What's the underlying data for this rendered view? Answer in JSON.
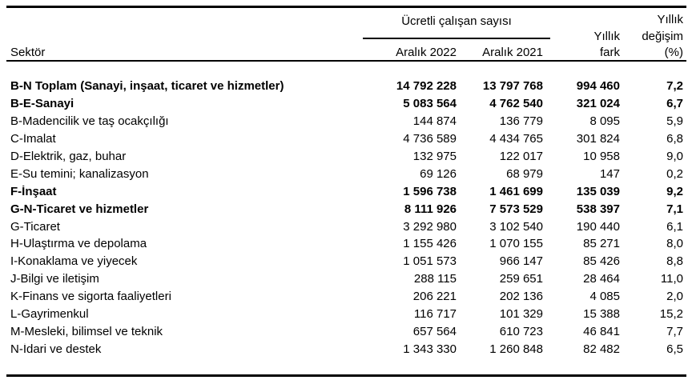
{
  "colors": {
    "background": "#ffffff",
    "text": "#000000",
    "rule": "#000000"
  },
  "table": {
    "sector_header": "Sektör",
    "group_header": "Ücretli çalışan sayısı",
    "col_2022": "Aralık 2022",
    "col_2021": "Aralık 2021",
    "col_fark": {
      "line1": "Yıllık",
      "line2": "fark"
    },
    "col_pct": {
      "line1": "Yıllık",
      "line2": "değişim",
      "line3": "(%)"
    },
    "rows": [
      {
        "sector": "B-N Toplam (Sanayi, inşaat, ticaret ve hizmetler)",
        "dec_2022": "14 792 228",
        "dec_2021": "13 797 768",
        "annual_diff": "994 460",
        "annual_change_pct": "7,2",
        "bold": true
      },
      {
        "sector": "B-E-Sanayi",
        "dec_2022": "5 083 564",
        "dec_2021": "4 762 540",
        "annual_diff": "321 024",
        "annual_change_pct": "6,7",
        "bold": true
      },
      {
        "sector": "B-Madencilik ve taş ocakçılığı",
        "dec_2022": "144 874",
        "dec_2021": "136 779",
        "annual_diff": "8 095",
        "annual_change_pct": "5,9",
        "bold": false
      },
      {
        "sector": "C-İmalat",
        "dec_2022": "4 736 589",
        "dec_2021": "4 434 765",
        "annual_diff": "301 824",
        "annual_change_pct": "6,8",
        "bold": false
      },
      {
        "sector": "D-Elektrik, gaz, buhar",
        "dec_2022": "132 975",
        "dec_2021": "122 017",
        "annual_diff": "10 958",
        "annual_change_pct": "9,0",
        "bold": false
      },
      {
        "sector": "E-Su temini; kanalizasyon",
        "dec_2022": "69 126",
        "dec_2021": "68 979",
        "annual_diff": "147",
        "annual_change_pct": "0,2",
        "bold": false
      },
      {
        "sector": "F-İnşaat",
        "dec_2022": "1 596 738",
        "dec_2021": "1 461 699",
        "annual_diff": "135 039",
        "annual_change_pct": "9,2",
        "bold": true
      },
      {
        "sector": "G-N-Ticaret ve hizmetler",
        "dec_2022": "8 111 926",
        "dec_2021": "7 573 529",
        "annual_diff": "538 397",
        "annual_change_pct": "7,1",
        "bold": true
      },
      {
        "sector": "G-Ticaret",
        "dec_2022": "3 292 980",
        "dec_2021": "3 102 540",
        "annual_diff": "190 440",
        "annual_change_pct": "6,1",
        "bold": false
      },
      {
        "sector": "H-Ulaştırma ve depolama",
        "dec_2022": "1 155 426",
        "dec_2021": "1 070 155",
        "annual_diff": "85 271",
        "annual_change_pct": "8,0",
        "bold": false
      },
      {
        "sector": "I-Konaklama ve yiyecek",
        "dec_2022": "1 051 573",
        "dec_2021": "966 147",
        "annual_diff": "85 426",
        "annual_change_pct": "8,8",
        "bold": false
      },
      {
        "sector": "J-Bilgi ve iletişim",
        "dec_2022": "288 115",
        "dec_2021": "259 651",
        "annual_diff": "28 464",
        "annual_change_pct": "11,0",
        "bold": false
      },
      {
        "sector": "K-Finans ve sigorta faaliyetleri",
        "dec_2022": "206 221",
        "dec_2021": "202 136",
        "annual_diff": "4 085",
        "annual_change_pct": "2,0",
        "bold": false
      },
      {
        "sector": "L-Gayrimenkul",
        "dec_2022": "116 717",
        "dec_2021": "101 329",
        "annual_diff": "15 388",
        "annual_change_pct": "15,2",
        "bold": false
      },
      {
        "sector": "M-Mesleki, bilimsel ve teknik",
        "dec_2022": "657 564",
        "dec_2021": "610 723",
        "annual_diff": "46 841",
        "annual_change_pct": "7,7",
        "bold": false
      },
      {
        "sector": "N-İdari ve destek",
        "dec_2022": "1 343 330",
        "dec_2021": "1 260 848",
        "annual_diff": "82 482",
        "annual_change_pct": "6,5",
        "bold": false
      }
    ]
  }
}
